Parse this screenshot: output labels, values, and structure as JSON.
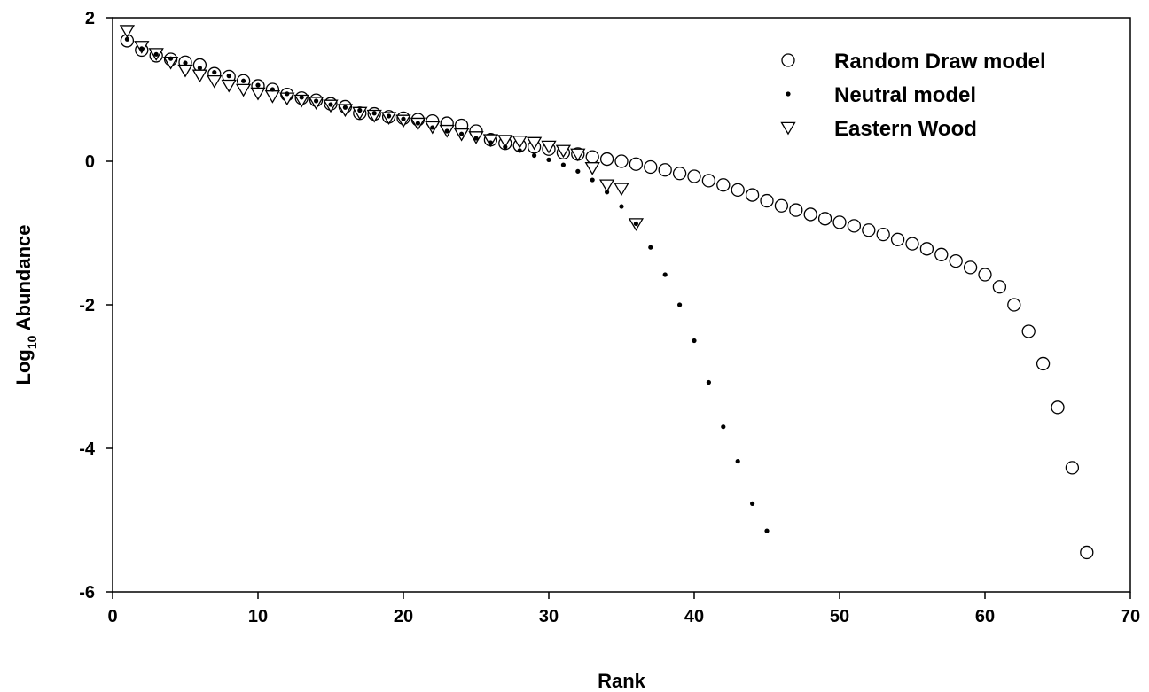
{
  "chart_data": {
    "type": "scatter",
    "xlabel": "Rank",
    "ylabel": "Log",
    "ylabel_sub": "10",
    "ylabel_suffix": " Abundance",
    "xlim": [
      0,
      70
    ],
    "ylim": [
      -6,
      2
    ],
    "xticks": [
      0,
      10,
      20,
      30,
      40,
      50,
      60,
      70
    ],
    "yticks": [
      -6,
      -4,
      -2,
      0,
      2
    ],
    "grid": false,
    "legend_position": "top-right",
    "series": [
      {
        "name": "Random Draw model",
        "marker": "open-circle",
        "x": [
          1,
          2,
          3,
          4,
          5,
          6,
          7,
          8,
          9,
          10,
          11,
          12,
          13,
          14,
          15,
          16,
          17,
          18,
          19,
          20,
          21,
          22,
          23,
          24,
          25,
          26,
          27,
          28,
          29,
          30,
          31,
          32,
          33,
          34,
          35,
          36,
          37,
          38,
          39,
          40,
          41,
          42,
          43,
          44,
          45,
          46,
          47,
          48,
          49,
          50,
          51,
          52,
          53,
          54,
          55,
          56,
          57,
          58,
          59,
          60,
          61,
          62,
          63,
          64,
          65,
          66,
          67
        ],
        "y": [
          1.68,
          1.55,
          1.47,
          1.42,
          1.38,
          1.34,
          1.22,
          1.18,
          1.12,
          1.05,
          1.0,
          0.93,
          0.88,
          0.85,
          0.8,
          0.76,
          0.67,
          0.66,
          0.62,
          0.6,
          0.58,
          0.56,
          0.53,
          0.5,
          0.42,
          0.3,
          0.25,
          0.22,
          0.2,
          0.17,
          0.12,
          0.1,
          0.06,
          0.03,
          0.0,
          -0.04,
          -0.08,
          -0.12,
          -0.17,
          -0.21,
          -0.27,
          -0.33,
          -0.4,
          -0.47,
          -0.55,
          -0.62,
          -0.68,
          -0.74,
          -0.8,
          -0.85,
          -0.9,
          -0.96,
          -1.02,
          -1.09,
          -1.15,
          -1.22,
          -1.3,
          -1.39,
          -1.48,
          -1.58,
          -1.75,
          -2.0,
          -2.37,
          -2.82,
          -3.43,
          -4.27,
          -5.45
        ]
      },
      {
        "name": "Neutral model",
        "marker": "dot",
        "x": [
          1,
          2,
          3,
          4,
          5,
          6,
          7,
          8,
          9,
          10,
          11,
          12,
          13,
          14,
          15,
          16,
          17,
          18,
          19,
          20,
          21,
          22,
          23,
          24,
          25,
          26,
          27,
          28,
          29,
          30,
          31,
          32,
          33,
          34,
          35,
          36,
          37,
          38,
          39,
          40,
          41,
          42,
          43,
          44,
          45
        ],
        "y": [
          1.7,
          1.57,
          1.49,
          1.43,
          1.37,
          1.3,
          1.24,
          1.19,
          1.12,
          1.06,
          1.0,
          0.94,
          0.89,
          0.84,
          0.79,
          0.75,
          0.71,
          0.67,
          0.63,
          0.59,
          0.53,
          0.47,
          0.42,
          0.38,
          0.32,
          0.26,
          0.2,
          0.15,
          0.08,
          0.02,
          -0.05,
          -0.14,
          -0.26,
          -0.43,
          -0.63,
          -0.87,
          -1.2,
          -1.58,
          -2.0,
          -2.5,
          -3.08,
          -3.7,
          -4.18,
          -4.77,
          -5.15
        ]
      },
      {
        "name": "Eastern Wood",
        "marker": "open-triangle-down",
        "x": [
          1,
          2,
          3,
          4,
          5,
          6,
          7,
          8,
          9,
          10,
          11,
          12,
          13,
          14,
          15,
          16,
          17,
          18,
          19,
          20,
          21,
          22,
          23,
          24,
          25,
          26,
          27,
          28,
          29,
          30,
          31,
          32,
          33,
          34,
          35,
          36
        ],
        "y": [
          1.82,
          1.6,
          1.5,
          1.38,
          1.27,
          1.2,
          1.12,
          1.06,
          1.0,
          0.95,
          0.91,
          0.88,
          0.85,
          0.82,
          0.78,
          0.72,
          0.68,
          0.64,
          0.61,
          0.57,
          0.53,
          0.48,
          0.43,
          0.38,
          0.34,
          0.3,
          0.29,
          0.28,
          0.26,
          0.21,
          0.15,
          0.1,
          -0.09,
          -0.33,
          -0.38,
          -0.87
        ]
      }
    ]
  }
}
